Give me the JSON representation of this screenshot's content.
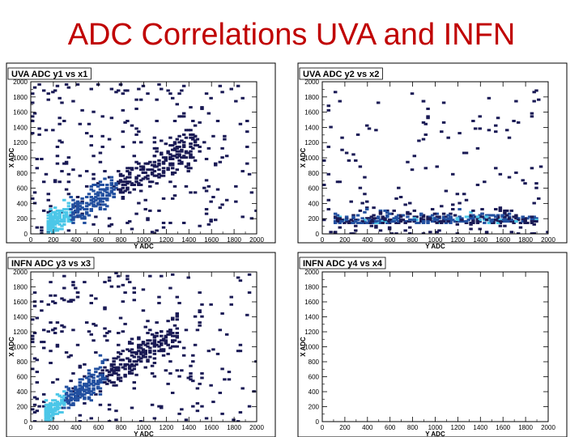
{
  "slide": {
    "title": "ADC Correlations UVA and INFN",
    "colors": {
      "title": "#c00000",
      "density_low": "#1a1a55",
      "density_mid": "#2350a0",
      "density_high": "#4cc7e8"
    }
  },
  "chart_data": [
    {
      "type": "heatmap",
      "title": "UVA ADC y1 vs x1",
      "xlabel": "Y ADC",
      "ylabel": "X ADC",
      "xlim": [
        0,
        2000
      ],
      "ylim": [
        0,
        2000
      ],
      "xticks": [
        0,
        200,
        400,
        600,
        800,
        1000,
        1200,
        1400,
        1600,
        1800,
        2000
      ],
      "yticks": [
        0,
        200,
        400,
        600,
        800,
        1000,
        1200,
        1400,
        1600,
        1800,
        2000
      ],
      "pattern": "diagonal",
      "correlation": {
        "x_start": 150,
        "x_end": 1500,
        "slope": 0.82,
        "spread": 70
      },
      "background_density": "medium"
    },
    {
      "type": "heatmap",
      "title": "UVA ADC y2 vs x2",
      "xlabel": "Y ADC",
      "ylabel": "X ADC",
      "xlim": [
        0,
        2000
      ],
      "ylim": [
        0,
        2000
      ],
      "xticks": [
        0,
        200,
        400,
        600,
        800,
        1000,
        1200,
        1400,
        1600,
        1800,
        2000
      ],
      "yticks": [
        0,
        200,
        400,
        600,
        800,
        1000,
        1200,
        1400,
        1600,
        1800,
        2000
      ],
      "pattern": "low_band",
      "correlation": {
        "x_start": 100,
        "x_end": 1900,
        "band_center": 150,
        "spread": 60
      },
      "background_density": "low"
    },
    {
      "type": "heatmap",
      "title": "INFN ADC y3 vs x3",
      "xlabel": "Y ADC",
      "ylabel": "X ADC",
      "xlim": [
        0,
        2000
      ],
      "ylim": [
        0,
        2000
      ],
      "xticks": [
        0,
        200,
        400,
        600,
        800,
        1000,
        1200,
        1400,
        1600,
        1800,
        2000
      ],
      "yticks": [
        0,
        200,
        400,
        600,
        800,
        1000,
        1200,
        1400,
        1600,
        1800,
        2000
      ],
      "pattern": "diagonal",
      "correlation": {
        "x_start": 120,
        "x_end": 1300,
        "slope": 0.95,
        "spread": 60
      },
      "background_density": "medium"
    },
    {
      "type": "heatmap",
      "title": "INFN ADC y4 vs x4",
      "xlabel": "Y ADC",
      "ylabel": "X ADC",
      "xlim": [
        0,
        2000
      ],
      "ylim": [
        0,
        2000
      ],
      "xticks": [
        0,
        200,
        400,
        600,
        800,
        1000,
        1200,
        1400,
        1600,
        1800,
        2000
      ],
      "yticks": [
        0,
        200,
        400,
        600,
        800,
        1000,
        1200,
        1400,
        1600,
        1800,
        2000
      ],
      "pattern": "empty",
      "background_density": "none"
    }
  ]
}
